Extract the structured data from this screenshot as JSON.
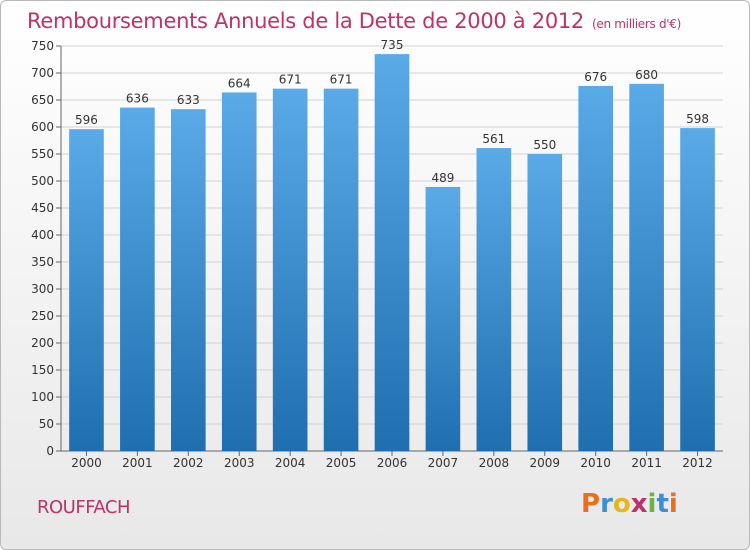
{
  "header": {
    "title": "Remboursements Annuels de la Dette de 2000 à 2012",
    "unit": "(en milliers d'€)"
  },
  "footer": {
    "commune": "ROUFFACH",
    "logo": {
      "letters": [
        "P",
        "r",
        "o",
        "x",
        "i",
        "t",
        "i"
      ],
      "colors": [
        "#e8701a",
        "#3a8fd8",
        "#e8b41a",
        "#c0306a",
        "#6cb33f",
        "#3a8fd8",
        "#e8701a"
      ]
    }
  },
  "colors": {
    "bar_light": "#5aaae8",
    "bar_dark": "#1f6fb0",
    "title": "#c0306a"
  },
  "chart_data": {
    "type": "bar",
    "categories": [
      "2000",
      "2001",
      "2002",
      "2003",
      "2004",
      "2005",
      "2006",
      "2007",
      "2008",
      "2009",
      "2010",
      "2011",
      "2012"
    ],
    "values": [
      596,
      636,
      633,
      664,
      671,
      671,
      735,
      489,
      561,
      550,
      676,
      680,
      598
    ],
    "ylim": [
      0,
      750
    ],
    "yticks": [
      0,
      50,
      100,
      150,
      200,
      250,
      300,
      350,
      400,
      450,
      500,
      550,
      600,
      650,
      700,
      750
    ],
    "grid": true,
    "xlabel": "",
    "ylabel": ""
  }
}
